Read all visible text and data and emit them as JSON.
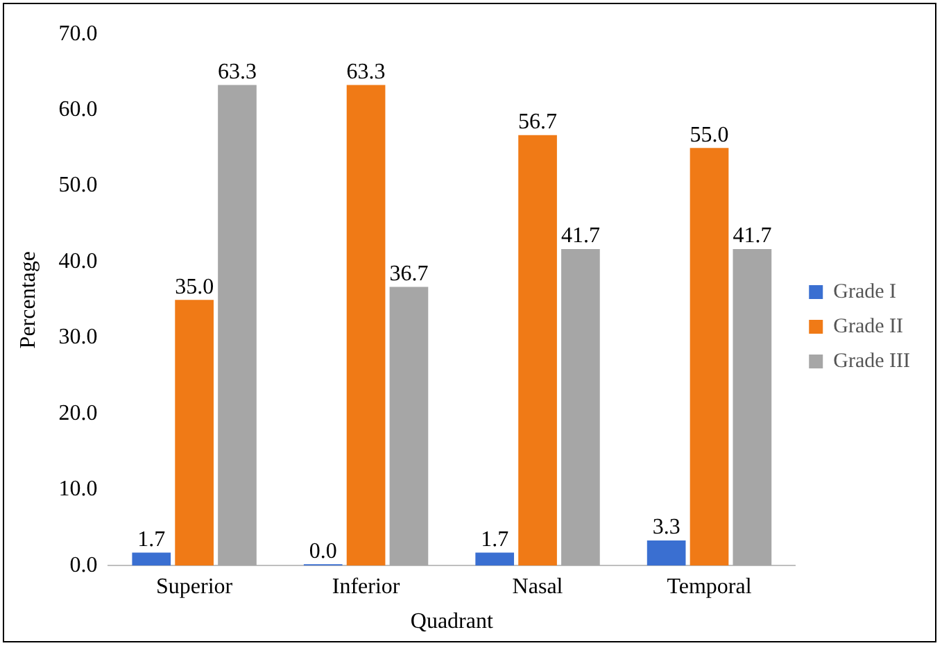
{
  "chart_data": {
    "type": "bar",
    "xlabel": "Quadrant",
    "ylabel": "Percentage",
    "categories": [
      "Superior",
      "Inferior",
      "Nasal",
      "Temporal"
    ],
    "series": [
      {
        "name": "Grade I",
        "color": "#3a6fd1",
        "values": [
          1.7,
          0.0,
          1.7,
          3.3
        ],
        "value_labels": [
          "1.7",
          "0.0",
          "1.7",
          "3.3"
        ]
      },
      {
        "name": "Grade II",
        "color": "#f07a16",
        "values": [
          35.0,
          63.3,
          56.7,
          55.0
        ],
        "value_labels": [
          "35.0",
          "63.3",
          "56.7",
          "55.0"
        ]
      },
      {
        "name": "Grade III",
        "color": "#a6a6a6",
        "values": [
          63.3,
          36.7,
          41.7,
          41.7
        ],
        "value_labels": [
          "63.3",
          "36.7",
          "41.7",
          "41.7"
        ]
      }
    ],
    "ylim": [
      0,
      70
    ],
    "yticks": [
      {
        "value": 0,
        "label": "0.0"
      },
      {
        "value": 10,
        "label": "10.0"
      },
      {
        "value": 20,
        "label": "20.0"
      },
      {
        "value": 30,
        "label": "30.0"
      },
      {
        "value": 40,
        "label": "40.0"
      },
      {
        "value": 50,
        "label": "50.0"
      },
      {
        "value": 60,
        "label": "60.0"
      },
      {
        "value": 70,
        "label": "70.0"
      }
    ],
    "grid": false,
    "legend": "right"
  }
}
